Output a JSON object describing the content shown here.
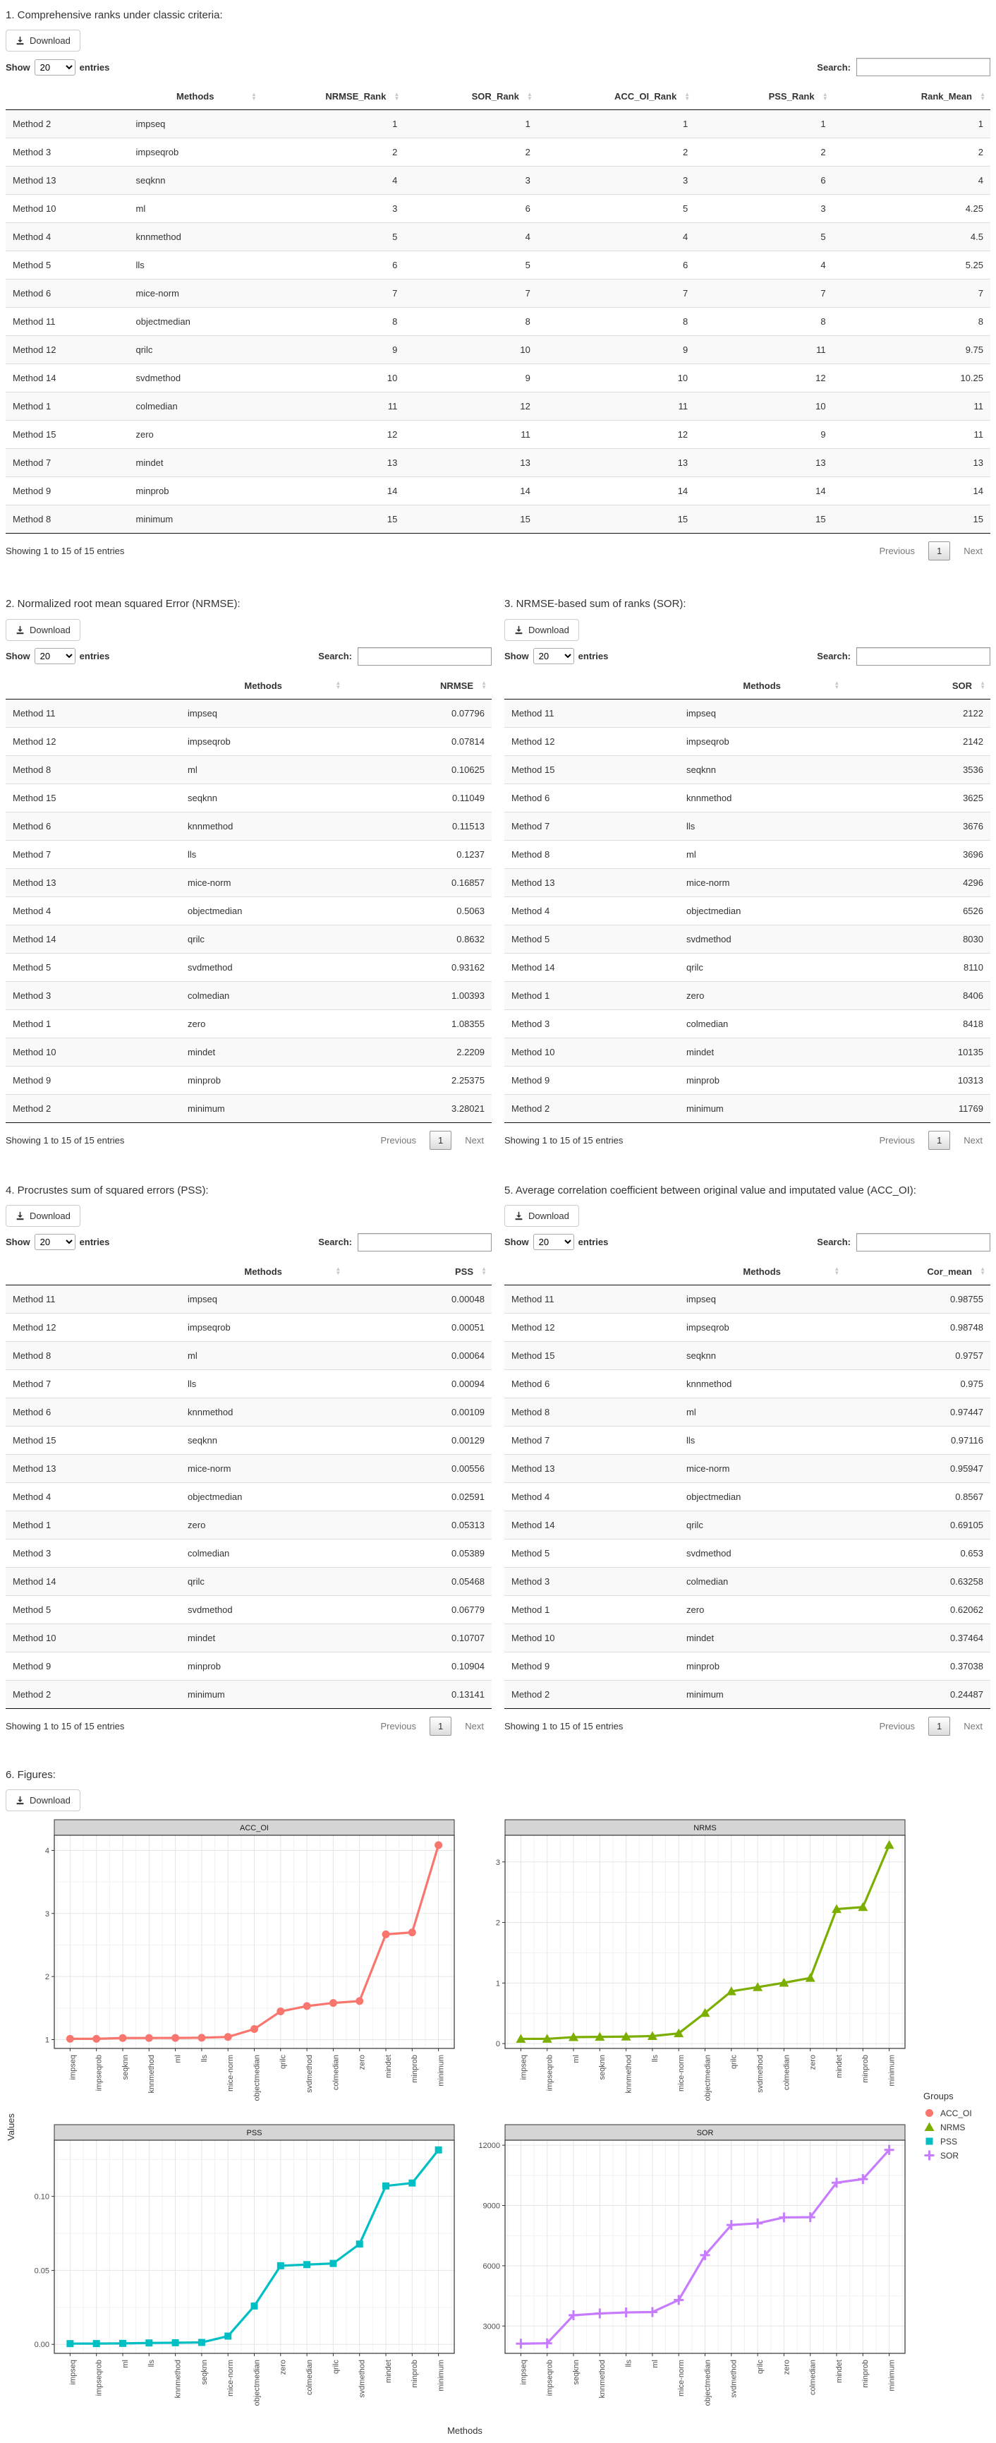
{
  "common": {
    "download_label": "Download",
    "show_label": "Show",
    "entries_label": "entries",
    "page_size": "20",
    "search_label": "Search:",
    "info_text": "Showing 1 to 15 of 15 entries",
    "previous_label": "Previous",
    "page_number": "1",
    "next_label": "Next"
  },
  "sections": {
    "ranks": {
      "title": "1. Comprehensive ranks under classic criteria:",
      "columns": [
        "",
        "Methods",
        "NRMSE_Rank",
        "SOR_Rank",
        "ACC_OI_Rank",
        "PSS_Rank",
        "Rank_Mean"
      ],
      "rows": [
        [
          "Method 2",
          "impseq",
          "1",
          "1",
          "1",
          "1",
          "1"
        ],
        [
          "Method 3",
          "impseqrob",
          "2",
          "2",
          "2",
          "2",
          "2"
        ],
        [
          "Method 13",
          "seqknn",
          "4",
          "3",
          "3",
          "6",
          "4"
        ],
        [
          "Method 10",
          "ml",
          "3",
          "6",
          "5",
          "3",
          "4.25"
        ],
        [
          "Method 4",
          "knnmethod",
          "5",
          "4",
          "4",
          "5",
          "4.5"
        ],
        [
          "Method 5",
          "lls",
          "6",
          "5",
          "6",
          "4",
          "5.25"
        ],
        [
          "Method 6",
          "mice-norm",
          "7",
          "7",
          "7",
          "7",
          "7"
        ],
        [
          "Method 11",
          "objectmedian",
          "8",
          "8",
          "8",
          "8",
          "8"
        ],
        [
          "Method 12",
          "qrilc",
          "9",
          "10",
          "9",
          "11",
          "9.75"
        ],
        [
          "Method 14",
          "svdmethod",
          "10",
          "9",
          "10",
          "12",
          "10.25"
        ],
        [
          "Method 1",
          "colmedian",
          "11",
          "12",
          "11",
          "10",
          "11"
        ],
        [
          "Method 15",
          "zero",
          "12",
          "11",
          "12",
          "9",
          "11"
        ],
        [
          "Method 7",
          "mindet",
          "13",
          "13",
          "13",
          "13",
          "13"
        ],
        [
          "Method 9",
          "minprob",
          "14",
          "14",
          "14",
          "14",
          "14"
        ],
        [
          "Method 8",
          "minimum",
          "15",
          "15",
          "15",
          "15",
          "15"
        ]
      ]
    },
    "nrmse": {
      "title": "2. Normalized root mean squared Error (NRMSE):",
      "columns": [
        "",
        "Methods",
        "NRMSE"
      ],
      "rows": [
        [
          "Method 11",
          "impseq",
          "0.07796"
        ],
        [
          "Method 12",
          "impseqrob",
          "0.07814"
        ],
        [
          "Method 8",
          "ml",
          "0.10625"
        ],
        [
          "Method 15",
          "seqknn",
          "0.11049"
        ],
        [
          "Method 6",
          "knnmethod",
          "0.11513"
        ],
        [
          "Method 7",
          "lls",
          "0.1237"
        ],
        [
          "Method 13",
          "mice-norm",
          "0.16857"
        ],
        [
          "Method 4",
          "objectmedian",
          "0.5063"
        ],
        [
          "Method 14",
          "qrilc",
          "0.8632"
        ],
        [
          "Method 5",
          "svdmethod",
          "0.93162"
        ],
        [
          "Method 3",
          "colmedian",
          "1.00393"
        ],
        [
          "Method 1",
          "zero",
          "1.08355"
        ],
        [
          "Method 10",
          "mindet",
          "2.2209"
        ],
        [
          "Method 9",
          "minprob",
          "2.25375"
        ],
        [
          "Method 2",
          "minimum",
          "3.28021"
        ]
      ]
    },
    "sor": {
      "title": "3. NRMSE-based sum of ranks (SOR):",
      "columns": [
        "",
        "Methods",
        "SOR"
      ],
      "rows": [
        [
          "Method 11",
          "impseq",
          "2122"
        ],
        [
          "Method 12",
          "impseqrob",
          "2142"
        ],
        [
          "Method 15",
          "seqknn",
          "3536"
        ],
        [
          "Method 6",
          "knnmethod",
          "3625"
        ],
        [
          "Method 7",
          "lls",
          "3676"
        ],
        [
          "Method 8",
          "ml",
          "3696"
        ],
        [
          "Method 13",
          "mice-norm",
          "4296"
        ],
        [
          "Method 4",
          "objectmedian",
          "6526"
        ],
        [
          "Method 5",
          "svdmethod",
          "8030"
        ],
        [
          "Method 14",
          "qrilc",
          "8110"
        ],
        [
          "Method 1",
          "zero",
          "8406"
        ],
        [
          "Method 3",
          "colmedian",
          "8418"
        ],
        [
          "Method 10",
          "mindet",
          "10135"
        ],
        [
          "Method 9",
          "minprob",
          "10313"
        ],
        [
          "Method 2",
          "minimum",
          "11769"
        ]
      ]
    },
    "pss": {
      "title": "4. Procrustes sum of squared errors (PSS):",
      "columns": [
        "",
        "Methods",
        "PSS"
      ],
      "rows": [
        [
          "Method 11",
          "impseq",
          "0.00048"
        ],
        [
          "Method 12",
          "impseqrob",
          "0.00051"
        ],
        [
          "Method 8",
          "ml",
          "0.00064"
        ],
        [
          "Method 7",
          "lls",
          "0.00094"
        ],
        [
          "Method 6",
          "knnmethod",
          "0.00109"
        ],
        [
          "Method 15",
          "seqknn",
          "0.00129"
        ],
        [
          "Method 13",
          "mice-norm",
          "0.00556"
        ],
        [
          "Method 4",
          "objectmedian",
          "0.02591"
        ],
        [
          "Method 1",
          "zero",
          "0.05313"
        ],
        [
          "Method 3",
          "colmedian",
          "0.05389"
        ],
        [
          "Method 14",
          "qrilc",
          "0.05468"
        ],
        [
          "Method 5",
          "svdmethod",
          "0.06779"
        ],
        [
          "Method 10",
          "mindet",
          "0.10707"
        ],
        [
          "Method 9",
          "minprob",
          "0.10904"
        ],
        [
          "Method 2",
          "minimum",
          "0.13141"
        ]
      ]
    },
    "acc": {
      "title": "5. Average correlation coefficient between original value and imputated value (ACC_OI):",
      "columns": [
        "",
        "Methods",
        "Cor_mean"
      ],
      "rows": [
        [
          "Method 11",
          "impseq",
          "0.98755"
        ],
        [
          "Method 12",
          "impseqrob",
          "0.98748"
        ],
        [
          "Method 15",
          "seqknn",
          "0.9757"
        ],
        [
          "Method 6",
          "knnmethod",
          "0.975"
        ],
        [
          "Method 8",
          "ml",
          "0.97447"
        ],
        [
          "Method 7",
          "lls",
          "0.97116"
        ],
        [
          "Method 13",
          "mice-norm",
          "0.95947"
        ],
        [
          "Method 4",
          "objectmedian",
          "0.8567"
        ],
        [
          "Method 14",
          "qrilc",
          "0.69105"
        ],
        [
          "Method 5",
          "svdmethod",
          "0.653"
        ],
        [
          "Method 3",
          "colmedian",
          "0.63258"
        ],
        [
          "Method 1",
          "zero",
          "0.62062"
        ],
        [
          "Method 10",
          "mindet",
          "0.37464"
        ],
        [
          "Method 9",
          "minprob",
          "0.37038"
        ],
        [
          "Method 2",
          "minimum",
          "0.24487"
        ]
      ]
    }
  },
  "figures": {
    "title": "6. Figures:",
    "ylabel": "Values",
    "xlabel": "Methods",
    "legend": {
      "title": "Groups",
      "items": [
        {
          "label": "ACC_OI",
          "color": "#F8766D",
          "shape": "circle"
        },
        {
          "label": "NRMS",
          "color": "#7CAE00",
          "shape": "triangle"
        },
        {
          "label": "PSS",
          "color": "#00BFC4",
          "shape": "square"
        },
        {
          "label": "SOR",
          "color": "#C77CFF",
          "shape": "plus"
        }
      ]
    }
  },
  "chart_data": [
    {
      "type": "line",
      "title": "ACC_OI",
      "color": "#F8766D",
      "marker": "circle",
      "categories": [
        "impseq",
        "impseqrob",
        "seqknn",
        "knnmethod",
        "ml",
        "lls",
        "mice-norm",
        "objectmedian",
        "qrilc",
        "svdmethod",
        "colmedian",
        "zero",
        "mindet",
        "minprob",
        "minimum"
      ],
      "values": [
        1.0126,
        1.0127,
        1.0249,
        1.0256,
        1.0262,
        1.0297,
        1.0422,
        1.1673,
        1.4471,
        1.5314,
        1.5808,
        1.6113,
        2.6692,
        2.6999,
        4.0838
      ],
      "yticks": [
        1,
        2,
        3,
        4
      ],
      "ytick_labels": [
        "1",
        "2",
        "3",
        "4"
      ],
      "ylim": [
        0.86,
        4.24
      ],
      "grid": true,
      "xlabel": "Methods",
      "ylabel": "Values"
    },
    {
      "type": "line",
      "title": "NRMS",
      "color": "#7CAE00",
      "marker": "triangle",
      "categories": [
        "impseq",
        "impseqrob",
        "ml",
        "seqknn",
        "knnmethod",
        "lls",
        "mice-norm",
        "objectmedian",
        "qrilc",
        "svdmethod",
        "colmedian",
        "zero",
        "mindet",
        "minprob",
        "minimum"
      ],
      "values": [
        0.07796,
        0.07814,
        0.10625,
        0.11049,
        0.11513,
        0.1237,
        0.16857,
        0.5063,
        0.8632,
        0.93162,
        1.00393,
        1.08355,
        2.2209,
        2.25375,
        3.28021
      ],
      "yticks": [
        0,
        1,
        2,
        3
      ],
      "ytick_labels": [
        "0",
        "1",
        "2",
        "3"
      ],
      "ylim": [
        -0.08,
        3.44
      ],
      "grid": true,
      "xlabel": "Methods",
      "ylabel": "Values"
    },
    {
      "type": "line",
      "title": "PSS",
      "color": "#00BFC4",
      "marker": "square",
      "categories": [
        "impseq",
        "impseqrob",
        "ml",
        "lls",
        "knnmethod",
        "seqknn",
        "mice-norm",
        "objectmedian",
        "zero",
        "colmedian",
        "qrilc",
        "svdmethod",
        "mindet",
        "minprob",
        "minimum"
      ],
      "values": [
        0.00048,
        0.00051,
        0.00064,
        0.00094,
        0.00109,
        0.00129,
        0.00556,
        0.02591,
        0.05313,
        0.05389,
        0.05468,
        0.06779,
        0.10707,
        0.10904,
        0.13141
      ],
      "yticks": [
        0,
        0.05,
        0.1
      ],
      "ytick_labels": [
        "0.00",
        "0.05",
        "0.10"
      ],
      "ylim": [
        -0.0061,
        0.138
      ],
      "grid": true,
      "xlabel": "Methods",
      "ylabel": "Values"
    },
    {
      "type": "line",
      "title": "SOR",
      "color": "#C77CFF",
      "marker": "plus",
      "categories": [
        "impseq",
        "impseqrob",
        "seqknn",
        "knnmethod",
        "lls",
        "ml",
        "mice-norm",
        "objectmedian",
        "svdmethod",
        "qrilc",
        "zero",
        "colmedian",
        "mindet",
        "minprob",
        "minimum"
      ],
      "values": [
        2122,
        2142,
        3536,
        3625,
        3676,
        3696,
        4296,
        6526,
        8030,
        8110,
        8406,
        8418,
        10135,
        10313,
        11769
      ],
      "yticks": [
        3000,
        6000,
        9000,
        12000
      ],
      "ytick_labels": [
        "3000",
        "6000",
        "9000",
        "12000"
      ],
      "ylim": [
        1640,
        12250
      ],
      "grid": true,
      "xlabel": "Methods",
      "ylabel": "Values"
    }
  ]
}
